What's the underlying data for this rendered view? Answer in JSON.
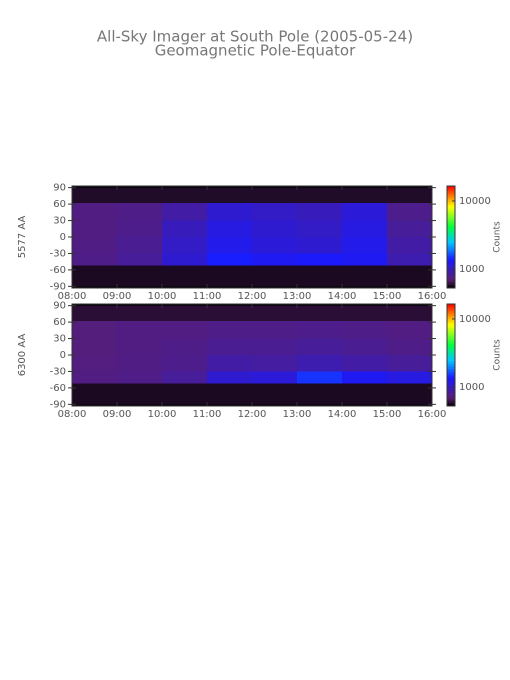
{
  "header": {
    "title": "All-Sky Imager at South Pole (2005-05-24)",
    "subtitle": "Geomagnetic Pole-Equator"
  },
  "chart_data": [
    {
      "type": "heatmap",
      "ylabel": "5577 AA",
      "x_bins": [
        8,
        9,
        10,
        11,
        12,
        13,
        14,
        15,
        16
      ],
      "y_bins": [
        90,
        62,
        30,
        0,
        -30,
        -52,
        -90
      ],
      "values": [
        [
          580,
          580,
          580,
          580,
          580,
          580,
          580,
          580
        ],
        [
          760,
          780,
          900,
          1100,
          1050,
          1000,
          1150,
          800
        ],
        [
          760,
          800,
          1000,
          1200,
          1100,
          1050,
          1200,
          850
        ],
        [
          770,
          820,
          1050,
          1250,
          1150,
          1100,
          1250,
          900
        ],
        [
          780,
          850,
          1100,
          1400,
          1300,
          1350,
          1300,
          950
        ],
        [
          570,
          570,
          570,
          570,
          570,
          570,
          570,
          570
        ]
      ],
      "xlim": [
        8,
        16
      ],
      "xticks": [
        {
          "value": 8,
          "label": "08:00"
        },
        {
          "value": 9,
          "label": "09:00"
        },
        {
          "value": 10,
          "label": "10:00"
        },
        {
          "value": 11,
          "label": "11:00"
        },
        {
          "value": 12,
          "label": "12:00"
        },
        {
          "value": 13,
          "label": "13:00"
        },
        {
          "value": 14,
          "label": "14:00"
        },
        {
          "value": 15,
          "label": "15:00"
        },
        {
          "value": 16,
          "label": "16:00"
        }
      ],
      "ylim": [
        -93,
        93
      ],
      "yticks": [
        90,
        60,
        30,
        0,
        -30,
        -60,
        -90
      ],
      "colorbar": {
        "label": "Counts",
        "clim": [
          525,
          16600
        ],
        "log": true,
        "ticks": [
          1000,
          10000
        ]
      }
    },
    {
      "type": "heatmap",
      "ylabel": "6300 AA",
      "x_bins": [
        8,
        9,
        10,
        11,
        12,
        13,
        14,
        15,
        16
      ],
      "y_bins": [
        90,
        62,
        30,
        0,
        -30,
        -52,
        -90
      ],
      "values": [
        [
          600,
          600,
          600,
          600,
          600,
          600,
          600,
          600
        ],
        [
          740,
          760,
          760,
          780,
          780,
          800,
          780,
          760
        ],
        [
          740,
          760,
          780,
          820,
          820,
          850,
          820,
          780
        ],
        [
          750,
          770,
          800,
          900,
          880,
          950,
          900,
          850
        ],
        [
          760,
          780,
          850,
          1100,
          1150,
          1500,
          1300,
          1200
        ],
        [
          570,
          570,
          570,
          570,
          570,
          570,
          570,
          570
        ]
      ],
      "xlim": [
        8,
        16
      ],
      "xticks": [
        {
          "value": 8,
          "label": "08:00"
        },
        {
          "value": 9,
          "label": "09:00"
        },
        {
          "value": 10,
          "label": "10:00"
        },
        {
          "value": 11,
          "label": "11:00"
        },
        {
          "value": 12,
          "label": "12:00"
        },
        {
          "value": 13,
          "label": "13:00"
        },
        {
          "value": 14,
          "label": "14:00"
        },
        {
          "value": 15,
          "label": "15:00"
        },
        {
          "value": 16,
          "label": "16:00"
        }
      ],
      "ylim": [
        -93,
        93
      ],
      "yticks": [
        90,
        60,
        30,
        0,
        -30,
        -60,
        -90
      ],
      "colorbar": {
        "label": "Counts",
        "clim": [
          525,
          16600
        ],
        "log": true,
        "ticks": [
          1000,
          10000
        ]
      }
    }
  ],
  "colormap": [
    [
      0,
      "#000000"
    ],
    [
      0.08,
      "#5a1e6e"
    ],
    [
      0.28,
      "#1a1aff"
    ],
    [
      0.45,
      "#00c8ff"
    ],
    [
      0.6,
      "#00ff40"
    ],
    [
      0.8,
      "#ffff00"
    ],
    [
      1,
      "#ff0000"
    ]
  ]
}
